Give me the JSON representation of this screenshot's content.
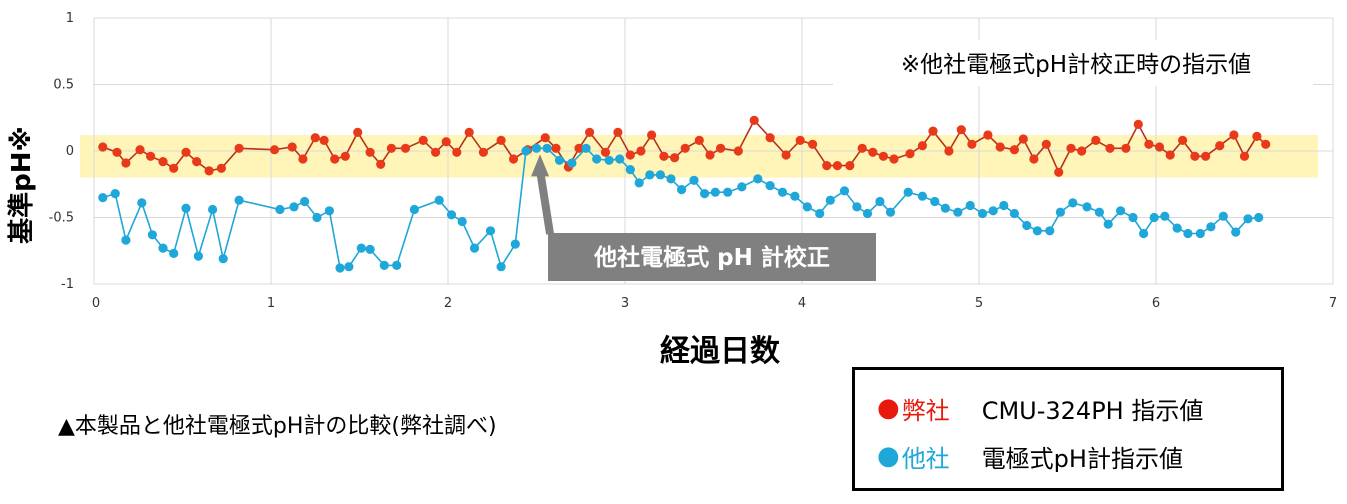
{
  "chart_data": {
    "type": "line",
    "title": "",
    "xlabel": "経過日数",
    "ylabel": "基準pH※",
    "xlim": [
      0,
      7
    ],
    "ylim": [
      -1,
      1
    ],
    "x_ticks": [
      "0",
      "1",
      "2",
      "3",
      "4",
      "5",
      "6",
      "7"
    ],
    "y_ticks": [
      "1",
      "0.5",
      "0",
      "-0.5",
      "-1"
    ],
    "grid": true,
    "highlight_band": {
      "y_range": [
        -0.2,
        0.12
      ],
      "color": "#fff5b8"
    },
    "annotation_note": "※他社電極式pH計校正時の指示値",
    "arrow_label": "他社電極式 pH 計校正",
    "arrow_target": {
      "x": 2.52,
      "y": 0.02
    },
    "series": [
      {
        "name": "弊社 CMU-324PH 指示値",
        "color": "#e8391a",
        "line_color": "#b8321a",
        "points": [
          [
            0.05,
            0.03
          ],
          [
            0.13,
            -0.01
          ],
          [
            0.18,
            -0.09
          ],
          [
            0.26,
            0.01
          ],
          [
            0.32,
            -0.04
          ],
          [
            0.39,
            -0.08
          ],
          [
            0.45,
            -0.13
          ],
          [
            0.52,
            -0.01
          ],
          [
            0.58,
            -0.08
          ],
          [
            0.65,
            -0.15
          ],
          [
            0.72,
            -0.13
          ],
          [
            0.82,
            0.02
          ],
          [
            1.02,
            0.01
          ],
          [
            1.12,
            0.03
          ],
          [
            1.18,
            -0.06
          ],
          [
            1.25,
            0.1
          ],
          [
            1.3,
            0.08
          ],
          [
            1.36,
            -0.06
          ],
          [
            1.42,
            -0.04
          ],
          [
            1.49,
            0.14
          ],
          [
            1.56,
            -0.01
          ],
          [
            1.62,
            -0.1
          ],
          [
            1.68,
            0.02
          ],
          [
            1.76,
            0.02
          ],
          [
            1.86,
            0.08
          ],
          [
            1.93,
            -0.01
          ],
          [
            1.99,
            0.07
          ],
          [
            2.05,
            -0.01
          ],
          [
            2.12,
            0.14
          ],
          [
            2.2,
            -0.01
          ],
          [
            2.3,
            0.08
          ],
          [
            2.37,
            -0.06
          ],
          [
            2.45,
            0.01
          ],
          [
            2.55,
            0.1
          ],
          [
            2.61,
            0.02
          ],
          [
            2.68,
            -0.12
          ],
          [
            2.74,
            0.02
          ],
          [
            2.8,
            0.14
          ],
          [
            2.89,
            -0.01
          ],
          [
            2.96,
            0.14
          ],
          [
            3.03,
            -0.03
          ],
          [
            3.09,
            0.0
          ],
          [
            3.15,
            0.12
          ],
          [
            3.22,
            -0.04
          ],
          [
            3.28,
            -0.05
          ],
          [
            3.34,
            0.02
          ],
          [
            3.42,
            0.08
          ],
          [
            3.48,
            -0.03
          ],
          [
            3.54,
            0.02
          ],
          [
            3.64,
            0.0
          ],
          [
            3.73,
            0.23
          ],
          [
            3.82,
            0.1
          ],
          [
            3.91,
            -0.03
          ],
          [
            3.99,
            0.08
          ],
          [
            4.06,
            0.05
          ],
          [
            4.14,
            -0.11
          ],
          [
            4.2,
            -0.11
          ],
          [
            4.27,
            -0.11
          ],
          [
            4.34,
            0.02
          ],
          [
            4.4,
            -0.01
          ],
          [
            4.46,
            -0.04
          ],
          [
            4.52,
            -0.06
          ],
          [
            4.61,
            -0.02
          ],
          [
            4.68,
            0.04
          ],
          [
            4.74,
            0.15
          ],
          [
            4.83,
            0.0
          ],
          [
            4.9,
            0.16
          ],
          [
            4.96,
            0.05
          ],
          [
            5.05,
            0.12
          ],
          [
            5.12,
            0.03
          ],
          [
            5.2,
            0.01
          ],
          [
            5.25,
            0.09
          ],
          [
            5.31,
            -0.06
          ],
          [
            5.38,
            0.05
          ],
          [
            5.45,
            -0.16
          ],
          [
            5.52,
            0.02
          ],
          [
            5.58,
            0.0
          ],
          [
            5.66,
            0.08
          ],
          [
            5.74,
            0.02
          ],
          [
            5.83,
            0.02
          ],
          [
            5.9,
            0.2
          ],
          [
            5.96,
            0.05
          ],
          [
            6.02,
            0.03
          ],
          [
            6.08,
            -0.03
          ],
          [
            6.15,
            0.08
          ],
          [
            6.22,
            -0.04
          ],
          [
            6.28,
            -0.04
          ],
          [
            6.36,
            0.04
          ],
          [
            6.44,
            0.12
          ],
          [
            6.5,
            -0.04
          ],
          [
            6.57,
            0.11
          ],
          [
            6.62,
            0.05
          ]
        ]
      },
      {
        "name": "他社 電極式pH計指示値",
        "color": "#1ea7d8",
        "line_color": "#1ea7d8",
        "points": [
          [
            0.05,
            -0.35
          ],
          [
            0.12,
            -0.32
          ],
          [
            0.18,
            -0.67
          ],
          [
            0.27,
            -0.39
          ],
          [
            0.33,
            -0.63
          ],
          [
            0.39,
            -0.73
          ],
          [
            0.45,
            -0.77
          ],
          [
            0.52,
            -0.43
          ],
          [
            0.59,
            -0.79
          ],
          [
            0.67,
            -0.44
          ],
          [
            0.73,
            -0.81
          ],
          [
            0.82,
            -0.37
          ],
          [
            1.05,
            -0.44
          ],
          [
            1.13,
            -0.42
          ],
          [
            1.19,
            -0.38
          ],
          [
            1.26,
            -0.5
          ],
          [
            1.33,
            -0.45
          ],
          [
            1.39,
            -0.88
          ],
          [
            1.44,
            -0.87
          ],
          [
            1.51,
            -0.73
          ],
          [
            1.56,
            -0.74
          ],
          [
            1.64,
            -0.86
          ],
          [
            1.71,
            -0.86
          ],
          [
            1.81,
            -0.44
          ],
          [
            1.95,
            -0.37
          ],
          [
            2.02,
            -0.48
          ],
          [
            2.08,
            -0.53
          ],
          [
            2.15,
            -0.73
          ],
          [
            2.24,
            -0.6
          ],
          [
            2.3,
            -0.87
          ],
          [
            2.38,
            -0.7
          ],
          [
            2.44,
            0.0
          ],
          [
            2.5,
            0.02
          ],
          [
            2.56,
            0.02
          ],
          [
            2.63,
            -0.07
          ],
          [
            2.7,
            -0.09
          ],
          [
            2.78,
            0.02
          ],
          [
            2.84,
            -0.06
          ],
          [
            2.91,
            -0.07
          ],
          [
            2.97,
            -0.06
          ],
          [
            3.03,
            -0.14
          ],
          [
            3.08,
            -0.24
          ],
          [
            3.14,
            -0.18
          ],
          [
            3.2,
            -0.18
          ],
          [
            3.26,
            -0.21
          ],
          [
            3.32,
            -0.29
          ],
          [
            3.39,
            -0.22
          ],
          [
            3.45,
            -0.32
          ],
          [
            3.51,
            -0.31
          ],
          [
            3.58,
            -0.31
          ],
          [
            3.66,
            -0.27
          ],
          [
            3.75,
            -0.21
          ],
          [
            3.82,
            -0.26
          ],
          [
            3.89,
            -0.31
          ],
          [
            3.96,
            -0.34
          ],
          [
            4.03,
            -0.42
          ],
          [
            4.1,
            -0.47
          ],
          [
            4.16,
            -0.37
          ],
          [
            4.24,
            -0.3
          ],
          [
            4.31,
            -0.42
          ],
          [
            4.37,
            -0.47
          ],
          [
            4.44,
            -0.38
          ],
          [
            4.5,
            -0.46
          ],
          [
            4.6,
            -0.31
          ],
          [
            4.68,
            -0.34
          ],
          [
            4.75,
            -0.38
          ],
          [
            4.81,
            -0.43
          ],
          [
            4.88,
            -0.46
          ],
          [
            4.95,
            -0.41
          ],
          [
            5.02,
            -0.47
          ],
          [
            5.08,
            -0.45
          ],
          [
            5.14,
            -0.41
          ],
          [
            5.2,
            -0.47
          ],
          [
            5.27,
            -0.56
          ],
          [
            5.33,
            -0.6
          ],
          [
            5.4,
            -0.6
          ],
          [
            5.46,
            -0.46
          ],
          [
            5.53,
            -0.39
          ],
          [
            5.61,
            -0.42
          ],
          [
            5.68,
            -0.46
          ],
          [
            5.73,
            -0.55
          ],
          [
            5.8,
            -0.45
          ],
          [
            5.87,
            -0.5
          ],
          [
            5.93,
            -0.62
          ],
          [
            5.99,
            -0.5
          ],
          [
            6.05,
            -0.49
          ],
          [
            6.12,
            -0.58
          ],
          [
            6.18,
            -0.62
          ],
          [
            6.25,
            -0.62
          ],
          [
            6.31,
            -0.57
          ],
          [
            6.38,
            -0.49
          ],
          [
            6.45,
            -0.61
          ],
          [
            6.52,
            -0.51
          ],
          [
            6.58,
            -0.5
          ]
        ]
      }
    ]
  },
  "caption": "▲本製品と他社電極式pH計の比較(弊社調べ)",
  "legend": {
    "items": [
      {
        "marker": "●",
        "company": "弊社",
        "desc": "CMU-324PH 指示値",
        "color": "#e8180c"
      },
      {
        "marker": "●",
        "company": "他社",
        "desc": "電極式pH計指示値",
        "color": "#1ea7d8"
      }
    ]
  }
}
